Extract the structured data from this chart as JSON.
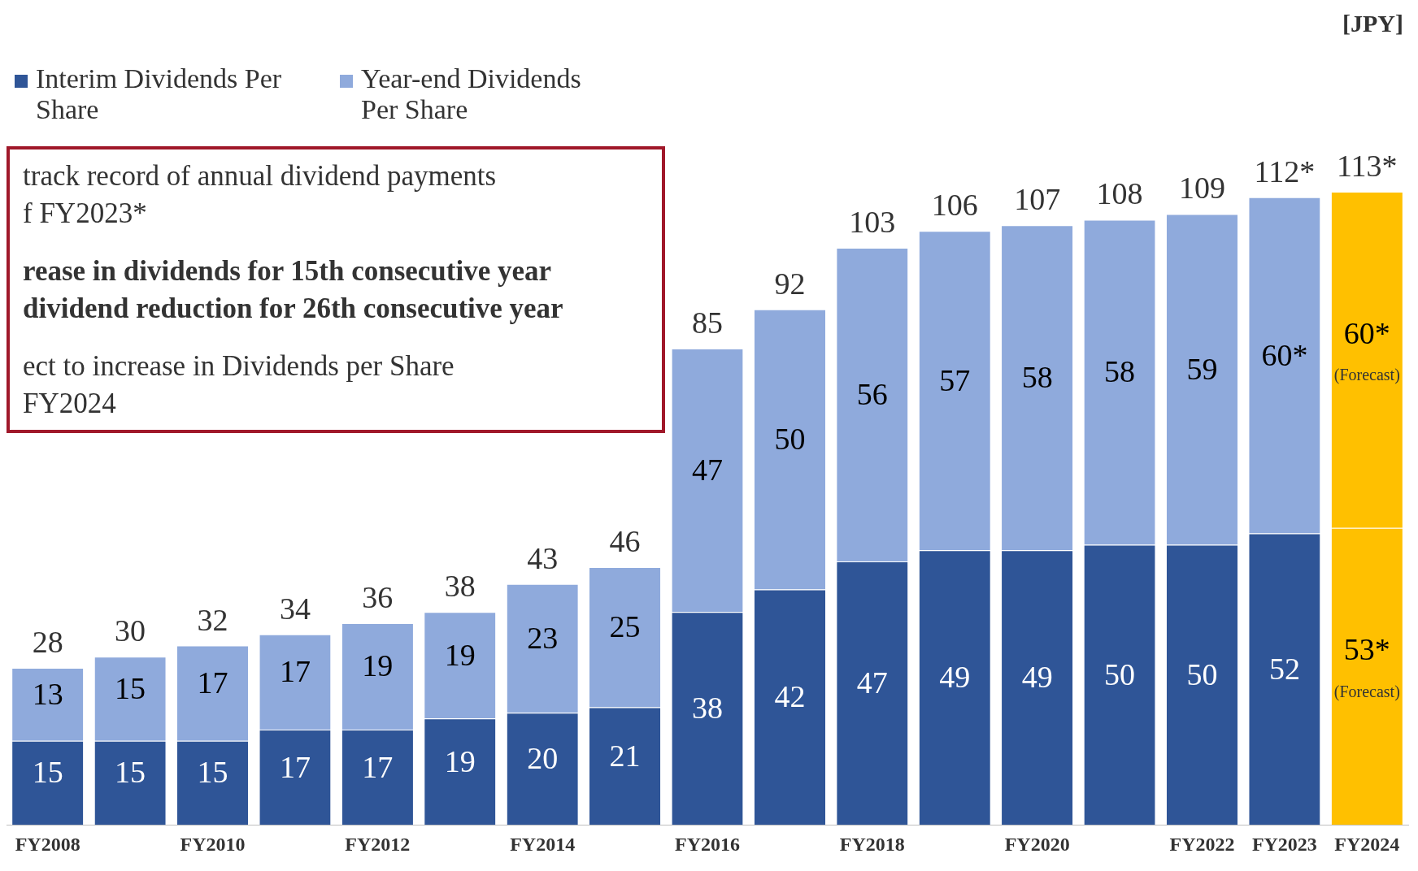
{
  "chart_data": {
    "type": "bar",
    "stacked": true,
    "legend": "top left",
    "grid": false,
    "categories": [
      "FY2008",
      null,
      "FY2010",
      null,
      "FY2012",
      null,
      "FY2014",
      null,
      "FY2016",
      null,
      "FY2018",
      null,
      "FY2020",
      null,
      "FY2022",
      "FY2023",
      "FY2024"
    ],
    "series": [
      {
        "name": "Interim Dividends Per Share",
        "color": "#2f5597",
        "colors": [
          "#2f5597",
          "#2f5597",
          "#2f5597",
          "#2f5597",
          "#2f5597",
          "#2f5597",
          "#2f5597",
          "#2f5597",
          "#2f5597",
          "#2f5597",
          "#2f5597",
          "#2f5597",
          "#2f5597",
          "#2f5597",
          "#2f5597",
          "#2f5597",
          "#ffc000"
        ],
        "values": [
          15,
          15,
          15,
          17,
          17,
          19,
          20,
          21,
          38,
          42,
          47,
          49,
          49,
          50,
          50,
          52,
          53
        ],
        "value_labels": [
          "15",
          "15",
          "15",
          "17",
          "17",
          "19",
          "20",
          "21",
          "38",
          "42",
          "47",
          "49",
          "49",
          "50",
          "50",
          "52",
          "53*"
        ]
      },
      {
        "name": "Year-end Dividends Per Share",
        "color": "#8faadc",
        "colors": [
          "#8faadc",
          "#8faadc",
          "#8faadc",
          "#8faadc",
          "#8faadc",
          "#8faadc",
          "#8faadc",
          "#8faadc",
          "#8faadc",
          "#8faadc",
          "#8faadc",
          "#8faadc",
          "#8faadc",
          "#8faadc",
          "#8faadc",
          "#8faadc",
          "#ffc000"
        ],
        "values": [
          13,
          15,
          17,
          17,
          19,
          19,
          23,
          25,
          47,
          50,
          56,
          57,
          58,
          58,
          59,
          60,
          60
        ],
        "value_labels": [
          "13",
          "15",
          "17",
          "17",
          "19",
          "19",
          "23",
          "25",
          "47",
          "50",
          "56",
          "57",
          "58",
          "58",
          "59",
          "60*",
          "60*"
        ]
      }
    ],
    "totals": [
      "28",
      "30",
      "32",
      "34",
      "36",
      "38",
      "43",
      "46",
      "85",
      "92",
      "103",
      "106",
      "107",
      "108",
      "109",
      "112*",
      "113*"
    ],
    "annotations": [
      "[JPY]",
      "track record of annual dividend payments",
      "f FY2023*",
      "rease in dividends for 15th consecutive year",
      "dividend reduction for 26th consecutive year",
      "ect to increase in Dividends per Share",
      "FY2024",
      "(Forecast)",
      "(Forecast)"
    ]
  }
}
